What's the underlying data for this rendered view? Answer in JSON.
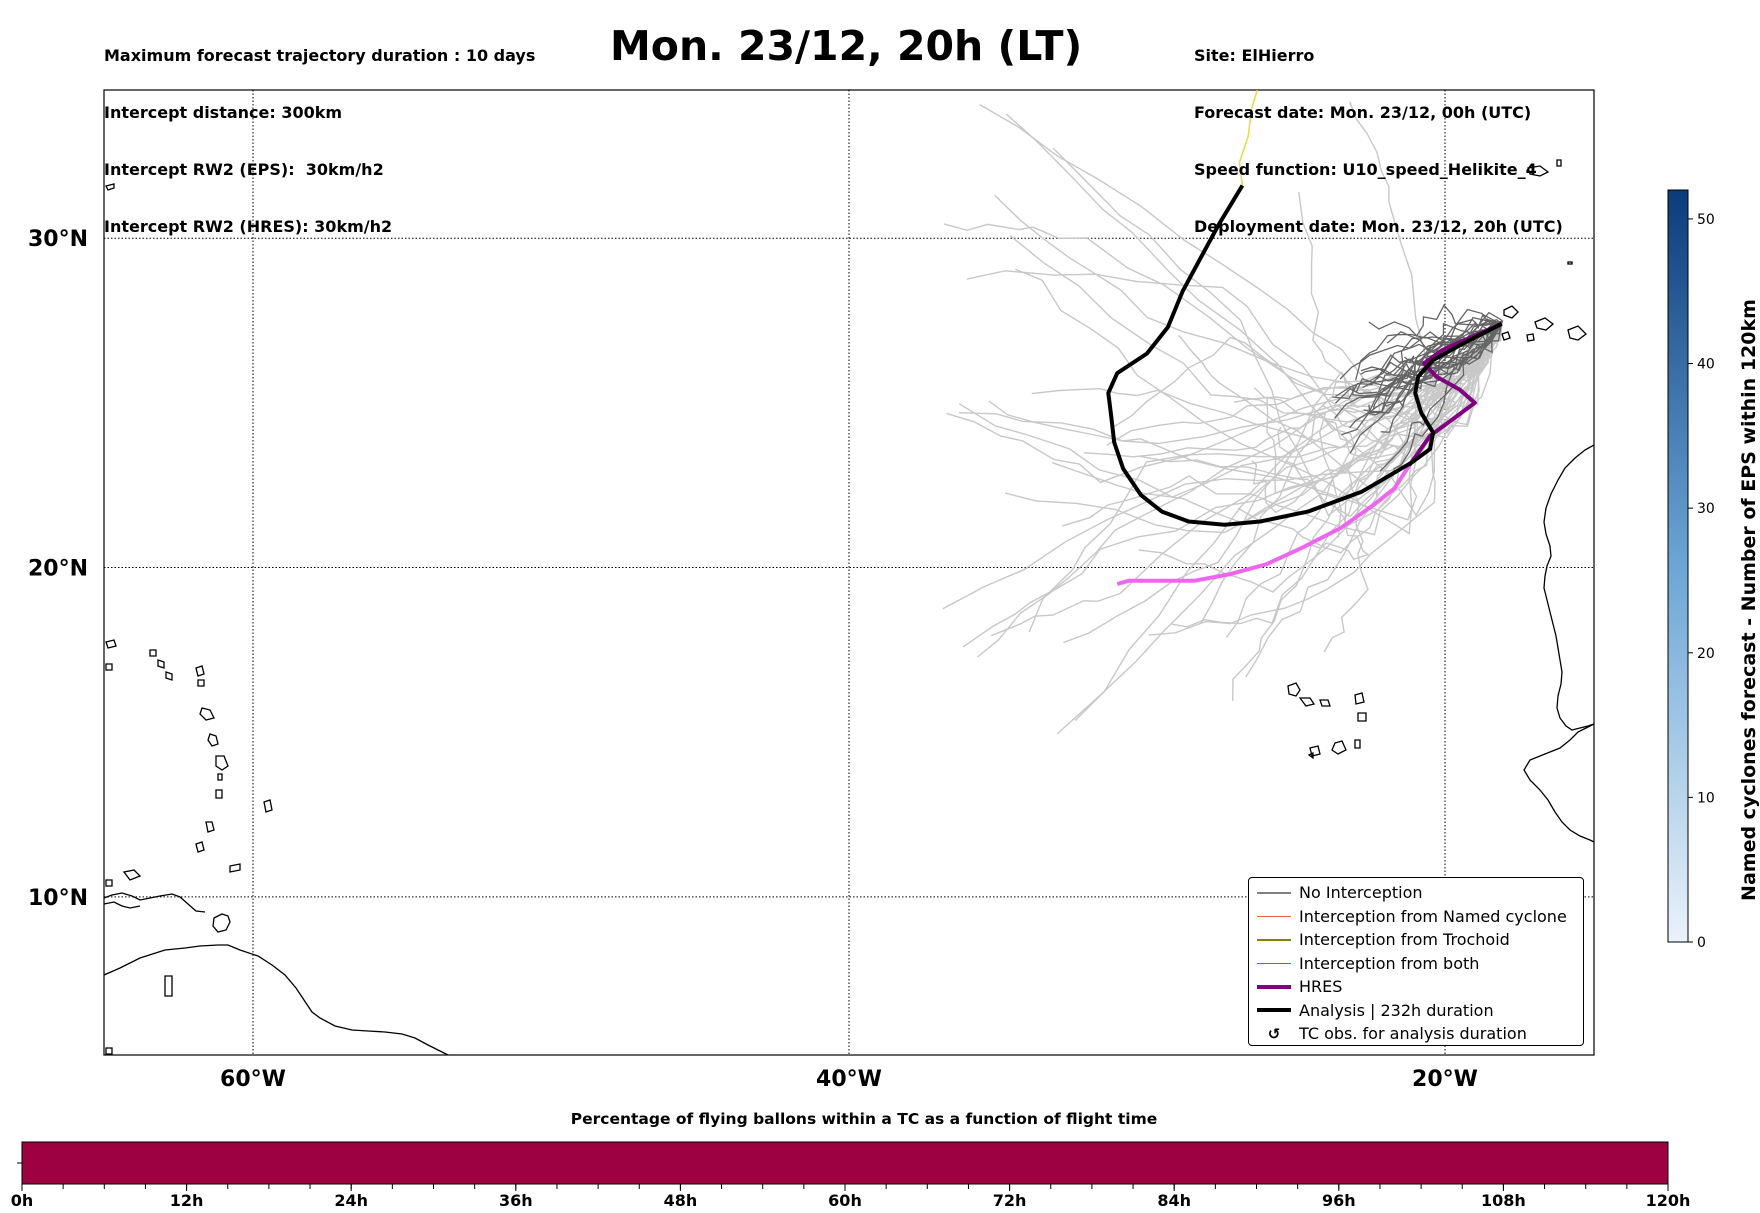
{
  "header": {
    "left_lines": [
      "Maximum forecast trajectory duration : 10 days",
      "Intercept distance: 300km",
      "Intercept RW2 (EPS):  30km/h2",
      "Intercept RW2 (HRES): 30km/h2"
    ],
    "title": "Mon. 23/12, 20h (LT)",
    "right_lines": [
      "Site: ElHierro",
      "Forecast date: Mon. 23/12, 00h (UTC)",
      "Speed function: U10_speed_Helikite_4",
      "Deployment date: Mon. 23/12, 20h (UTC)"
    ]
  },
  "map": {
    "lat_labels": [
      "30°N",
      "20°N",
      "10°N"
    ],
    "lon_labels": [
      "60°W",
      "40°W",
      "20°W"
    ],
    "lat_values": [
      30,
      20,
      10
    ],
    "lon_values": [
      -60,
      -40,
      -20
    ],
    "lon_range": [
      -65,
      -15
    ],
    "lat_range": [
      5.2,
      34.5
    ],
    "colors": {
      "eps_light": "#c8c8c8",
      "eps_dark": "#646464",
      "hres": "#800080",
      "hres_pink": "#ee66ee",
      "analysis": "#000000",
      "analysis_tail": "#e8d84a"
    },
    "analysis_track": [
      [
        -26.8,
        31.6
      ],
      [
        -27.2,
        31.0
      ],
      [
        -27.6,
        30.4
      ],
      [
        -28.2,
        29.4
      ],
      [
        -28.8,
        28.4
      ],
      [
        -29.3,
        27.3
      ],
      [
        -30.0,
        26.5
      ],
      [
        -31.0,
        25.9
      ],
      [
        -31.3,
        25.3
      ],
      [
        -31.2,
        24.6
      ],
      [
        -31.1,
        23.8
      ],
      [
        -30.8,
        23.0
      ],
      [
        -30.2,
        22.2
      ],
      [
        -29.5,
        21.7
      ],
      [
        -28.6,
        21.4
      ],
      [
        -27.4,
        21.3
      ],
      [
        -26.2,
        21.4
      ],
      [
        -24.6,
        21.7
      ],
      [
        -22.8,
        22.3
      ],
      [
        -21.1,
        23.2
      ],
      [
        -20.5,
        23.6
      ],
      [
        -20.4,
        24.1
      ],
      [
        -20.8,
        24.7
      ],
      [
        -21.0,
        25.3
      ],
      [
        -20.9,
        25.8
      ],
      [
        -20.4,
        26.3
      ],
      [
        -19.4,
        26.8
      ],
      [
        -18.1,
        27.4
      ]
    ],
    "analysis_tail": [
      [
        -26.8,
        31.6
      ],
      [
        -26.9,
        32.3
      ],
      [
        -26.6,
        33.1
      ],
      [
        -26.5,
        33.9
      ],
      [
        -26.3,
        34.5
      ]
    ],
    "hres_track": [
      [
        -18.1,
        27.4
      ],
      [
        -19.1,
        27.0
      ],
      [
        -20.1,
        26.6
      ],
      [
        -20.7,
        26.2
      ],
      [
        -20.3,
        25.8
      ],
      [
        -19.5,
        25.4
      ],
      [
        -19.0,
        25.0
      ],
      [
        -19.6,
        24.6
      ],
      [
        -20.5,
        24.0
      ],
      [
        -21.2,
        23.1
      ],
      [
        -21.7,
        22.4
      ],
      [
        -22.4,
        21.9
      ],
      [
        -23.5,
        21.2
      ],
      [
        -24.8,
        20.6
      ],
      [
        -26.0,
        20.1
      ],
      [
        -27.2,
        19.8
      ],
      [
        -28.4,
        19.6
      ],
      [
        -29.7,
        19.6
      ],
      [
        -30.6,
        19.6
      ],
      [
        -31.0,
        19.5
      ]
    ],
    "legend_items": [
      {
        "label": "No Interception",
        "color": "#808080",
        "width": 1.5,
        "kind": "line"
      },
      {
        "label": "Interception from Named cyclone",
        "color": "#e8663d",
        "width": 1.5,
        "kind": "line"
      },
      {
        "label": "Interception from Trochoid",
        "color": "#8b8000",
        "width": 1.5,
        "kind": "line"
      },
      {
        "label": "Interception from both",
        "color": "#2ca02c",
        "width": 1.5,
        "kind": "line"
      },
      {
        "label": "HRES",
        "color": "#800080",
        "width": 4,
        "kind": "line"
      },
      {
        "label": "Analysis | 232h duration",
        "color": "#000000",
        "width": 4,
        "kind": "line"
      },
      {
        "label": "TC obs. for analysis duration",
        "color": "#000000",
        "width": 0,
        "kind": "symbol",
        "symbol": "↺"
      }
    ]
  },
  "colorbar_right": {
    "title": "Named cyclones forecast - Number of EPS within 120km",
    "ticks": [
      "0",
      "10",
      "20",
      "30",
      "40",
      "50"
    ],
    "tick_values": [
      0,
      10,
      20,
      30,
      40,
      50
    ],
    "range": [
      0,
      52
    ],
    "color_low": "#eaf2fb",
    "color_high": "#0b3c7a"
  },
  "colorbar_bottom": {
    "title": "Percentage of flying ballons within a TC as a function of flight time",
    "ticks": [
      "0h",
      "12h",
      "24h",
      "36h",
      "48h",
      "60h",
      "72h",
      "84h",
      "96h",
      "108h",
      "120h"
    ],
    "tick_hours": [
      0,
      12,
      24,
      36,
      48,
      60,
      72,
      84,
      96,
      108,
      120
    ],
    "fill_color": "#9e0142"
  }
}
